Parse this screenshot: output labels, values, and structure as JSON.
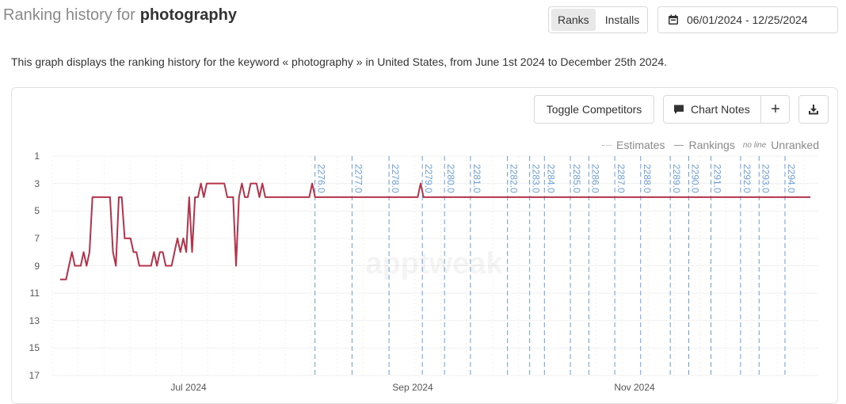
{
  "header": {
    "title_prefix": "Ranking history for",
    "keyword": "photography"
  },
  "toggle": {
    "ranks": "Ranks",
    "installs": "Installs"
  },
  "date_range": "06/01/2024 - 12/25/2024",
  "description": "This graph displays the ranking history for the keyword « photography » in United States, from June 1st 2024 to December 25th 2024.",
  "chart_toolbar": {
    "toggle_competitors": "Toggle Competitors",
    "chart_notes": "Chart Notes",
    "add": "+"
  },
  "legend": {
    "estimates": "Estimates",
    "rankings": "Rankings",
    "no_line": "no line",
    "unranked": "Unranked"
  },
  "watermark": "apptweak",
  "colors": {
    "line": "#b5324a",
    "marker": "#6b9fd8"
  },
  "chart_data": {
    "type": "line",
    "title": "",
    "y_inverted": true,
    "ylim": [
      1,
      17
    ],
    "y_ticks": [
      1,
      3,
      5,
      7,
      9,
      11,
      13,
      15,
      17
    ],
    "x_range": [
      "2024-06-01",
      "2024-12-25"
    ],
    "x_tick_labels": [
      "Jul 2024",
      "Sep 2024",
      "Nov 2024"
    ],
    "grid": true,
    "legend_position": "top-right",
    "series": [
      {
        "name": "Rankings",
        "values": [
          10,
          10,
          10,
          9,
          8,
          9,
          9,
          9,
          8,
          9,
          8,
          4,
          4,
          4,
          4,
          4,
          4,
          4,
          8,
          9,
          4,
          4,
          7,
          7,
          7,
          8,
          8,
          9,
          9,
          9,
          9,
          9,
          8,
          9,
          8,
          8,
          9,
          9,
          9,
          8,
          7,
          8,
          7,
          8,
          4,
          8,
          4,
          4,
          3,
          4,
          3,
          3,
          3,
          3,
          3,
          3,
          3,
          4,
          4,
          4,
          9,
          4,
          3,
          4,
          4,
          3,
          3,
          3,
          4,
          3,
          4,
          4,
          4,
          4,
          4,
          4,
          4,
          4,
          4,
          4,
          4,
          4,
          4,
          4,
          4,
          4,
          3,
          4,
          4,
          4,
          4,
          4,
          4,
          4,
          4,
          4,
          4,
          4,
          4,
          4,
          4,
          4,
          4,
          4,
          4,
          4,
          4,
          4,
          4,
          4,
          4,
          4,
          4,
          4,
          4,
          4,
          4,
          4,
          4,
          4,
          4,
          4,
          4,
          3,
          4,
          4,
          4,
          4,
          4,
          4,
          4,
          4,
          4,
          4,
          4,
          4,
          4,
          4,
          4,
          4,
          4,
          4,
          4,
          4,
          4,
          4,
          4,
          4,
          4,
          4,
          4,
          4,
          4,
          4,
          4,
          4,
          4,
          4,
          4,
          4,
          4,
          4,
          4,
          4,
          4,
          4,
          4,
          4,
          4,
          4,
          4,
          4,
          4,
          4,
          4,
          4,
          4,
          4,
          4,
          4,
          4,
          4,
          4,
          4,
          4,
          4,
          4,
          4,
          4,
          4,
          4,
          4,
          4,
          4,
          4,
          4,
          4,
          4,
          4,
          4,
          4,
          4,
          4,
          4,
          4,
          4,
          4,
          4,
          4,
          4,
          4,
          4,
          4,
          4,
          4,
          4,
          4,
          4,
          4,
          4,
          4,
          4,
          4,
          4,
          4,
          4,
          4,
          4,
          4,
          4,
          4,
          4,
          4,
          4,
          4,
          4,
          4,
          4,
          4,
          4,
          4,
          4,
          4,
          4,
          4,
          4,
          4,
          4,
          4,
          4,
          4,
          4,
          4,
          4,
          4,
          4,
          4
        ]
      }
    ],
    "notes": [
      {
        "date": "2024-08-11",
        "label": "2276.0"
      },
      {
        "date": "2024-08-21",
        "label": "2277.0"
      },
      {
        "date": "2024-08-31",
        "label": "2278.0"
      },
      {
        "date": "2024-09-09",
        "label": "2279.0"
      },
      {
        "date": "2024-09-15",
        "label": "2280.0"
      },
      {
        "date": "2024-09-22",
        "label": "2281.0"
      },
      {
        "date": "2024-10-02",
        "label": "2282.0"
      },
      {
        "date": "2024-10-08",
        "label": "2283.0"
      },
      {
        "date": "2024-10-12",
        "label": "2284.0"
      },
      {
        "date": "2024-10-19",
        "label": "2285.0"
      },
      {
        "date": "2024-10-24",
        "label": "2286.0"
      },
      {
        "date": "2024-10-31",
        "label": "2287.0"
      },
      {
        "date": "2024-11-07",
        "label": "2288.0"
      },
      {
        "date": "2024-11-15",
        "label": "2289.0"
      },
      {
        "date": "2024-11-20",
        "label": "2290.0"
      },
      {
        "date": "2024-11-26",
        "label": "2291.0"
      },
      {
        "date": "2024-12-04",
        "label": "2292.0"
      },
      {
        "date": "2024-12-09",
        "label": "2293.0"
      },
      {
        "date": "2024-12-16",
        "label": "2294.0"
      }
    ]
  }
}
